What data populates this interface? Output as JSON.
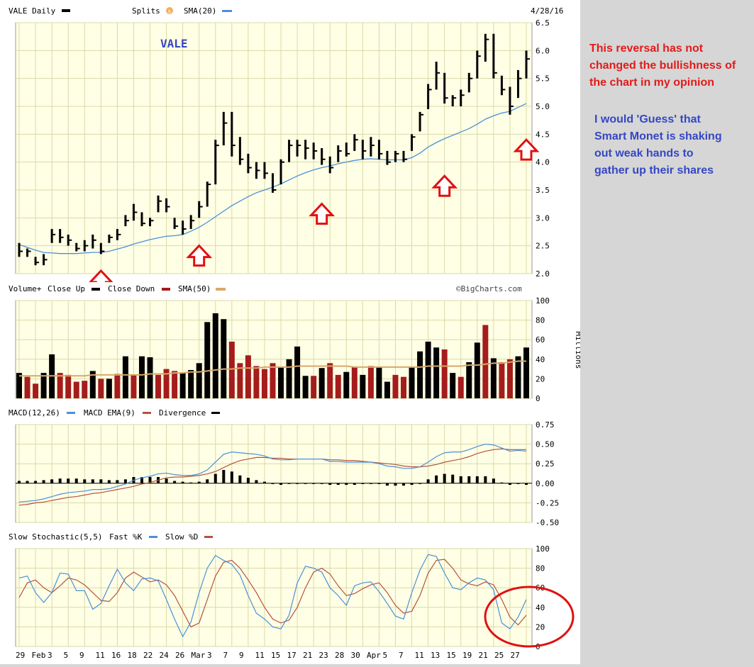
{
  "header": {
    "ticker_label": "VALE Daily",
    "splits_label": "Splits",
    "splits_icon": "s-circle-icon",
    "sma_label": "SMA(20)",
    "date": "4/28/16"
  },
  "price_panel": {
    "watermark": "VALE",
    "y_ticks": [
      "6.5",
      "6.0",
      "5.5",
      "5.0",
      "4.5",
      "4.0",
      "3.5",
      "3.0",
      "2.5",
      "2.0"
    ]
  },
  "volume_panel": {
    "legend_volume": "Volume+",
    "legend_close_up": "Close Up",
    "legend_close_down": "Close Down",
    "legend_sma": "SMA(50)",
    "source": "©BigCharts.com",
    "y_ticks": [
      "100",
      "80",
      "60",
      "40",
      "20",
      "0"
    ],
    "unit_label": "Millions"
  },
  "macd_panel": {
    "legend_macd": "MACD(12,26)",
    "legend_ema": "MACD EMA(9)",
    "legend_div": "Divergence",
    "y_ticks": [
      "0.75",
      "0.50",
      "0.25",
      "0.00",
      "-0.25",
      "-0.50"
    ]
  },
  "stoch_panel": {
    "legend_stoch": "Slow Stochastic(5,5)",
    "legend_fast": "Fast %K",
    "legend_slow": "Slow %D",
    "y_ticks": [
      "100",
      "80",
      "60",
      "40",
      "20",
      "0"
    ]
  },
  "x_labels": [
    "29",
    "Feb",
    "3",
    "5",
    "9",
    "11",
    "16",
    "18",
    "22",
    "24",
    "26",
    "Mar",
    "3",
    "7",
    "9",
    "11",
    "15",
    "17",
    "21",
    "23",
    "28",
    "30",
    "Apr",
    "5",
    "7",
    "11",
    "13",
    "15",
    "19",
    "21",
    "25",
    "27"
  ],
  "annotations": {
    "red": "This reversal has not\nchanged the bullishness of\nthe chart in my opinion",
    "blue": "I would 'Guess' that\nSmart Monet is shaking\nout weak hands to\ngather up their shares"
  },
  "colors": {
    "up": "#000000",
    "down": "#a51c1c",
    "sma_line": "#4a90d9",
    "vol_sma": "#d9a86c",
    "macd": "#4a90d9",
    "macd_ema": "#b5533c",
    "annot_red": "#e21b1b",
    "annot_blue": "#3547c4",
    "arrow": "#e01010",
    "panel_bg": "#ffffe6",
    "grid": "#d9d9a6"
  },
  "chart_data": [
    {
      "type": "candlestick",
      "title": "VALE Daily",
      "x": [
        "2016-01-29",
        "2016-02-01",
        "2016-02-02",
        "2016-02-03",
        "2016-02-04",
        "2016-02-05",
        "2016-02-08",
        "2016-02-09",
        "2016-02-10",
        "2016-02-11",
        "2016-02-12",
        "2016-02-16",
        "2016-02-17",
        "2016-02-18",
        "2016-02-19",
        "2016-02-22",
        "2016-02-23",
        "2016-02-24",
        "2016-02-25",
        "2016-02-26",
        "2016-02-29",
        "2016-03-01",
        "2016-03-02",
        "2016-03-03",
        "2016-03-04",
        "2016-03-07",
        "2016-03-08",
        "2016-03-09",
        "2016-03-10",
        "2016-03-11",
        "2016-03-14",
        "2016-03-15",
        "2016-03-16",
        "2016-03-17",
        "2016-03-18",
        "2016-03-21",
        "2016-03-22",
        "2016-03-23",
        "2016-03-24",
        "2016-03-28",
        "2016-03-29",
        "2016-03-30",
        "2016-03-31",
        "2016-04-01",
        "2016-04-04",
        "2016-04-05",
        "2016-04-06",
        "2016-04-07",
        "2016-04-08",
        "2016-04-11",
        "2016-04-12",
        "2016-04-13",
        "2016-04-14",
        "2016-04-15",
        "2016-04-18",
        "2016-04-19",
        "2016-04-20",
        "2016-04-21",
        "2016-04-22",
        "2016-04-25",
        "2016-04-26",
        "2016-04-27",
        "2016-04-28"
      ],
      "high": [
        2.55,
        2.45,
        2.3,
        2.35,
        2.8,
        2.8,
        2.7,
        2.55,
        2.6,
        2.7,
        2.55,
        2.7,
        2.8,
        3.05,
        3.25,
        3.1,
        3.0,
        3.4,
        3.35,
        3.0,
        2.95,
        3.05,
        3.3,
        3.65,
        4.4,
        4.9,
        4.9,
        4.45,
        4.15,
        4.0,
        4.0,
        3.8,
        4.05,
        4.4,
        4.4,
        4.4,
        4.35,
        4.25,
        4.1,
        4.3,
        4.35,
        4.5,
        4.4,
        4.45,
        4.4,
        4.2,
        4.2,
        4.2,
        4.5,
        4.9,
        5.4,
        5.8,
        5.6,
        5.2,
        5.3,
        5.6,
        6.0,
        6.3,
        6.3,
        5.55,
        5.35,
        5.65,
        6.0
      ],
      "low": [
        2.3,
        2.3,
        2.15,
        2.15,
        2.55,
        2.55,
        2.5,
        2.4,
        2.4,
        2.45,
        2.35,
        2.55,
        2.6,
        2.85,
        2.95,
        2.85,
        2.85,
        3.1,
        3.1,
        2.8,
        2.7,
        2.8,
        3.0,
        3.2,
        3.6,
        4.3,
        4.1,
        3.95,
        3.8,
        3.7,
        3.7,
        3.45,
        3.6,
        4.0,
        4.1,
        4.05,
        4.05,
        3.95,
        3.8,
        4.0,
        4.1,
        4.2,
        4.05,
        4.1,
        4.05,
        3.95,
        4.0,
        4.0,
        4.2,
        4.55,
        4.95,
        5.3,
        5.05,
        5.0,
        5.0,
        5.25,
        5.5,
        5.8,
        5.5,
        5.2,
        4.85,
        5.15,
        5.5
      ],
      "close": [
        2.4,
        2.4,
        2.2,
        2.25,
        2.7,
        2.65,
        2.6,
        2.45,
        2.5,
        2.6,
        2.4,
        2.65,
        2.7,
        2.95,
        3.1,
        2.9,
        2.95,
        3.3,
        3.2,
        2.85,
        2.8,
        2.95,
        3.2,
        3.6,
        4.3,
        4.7,
        4.3,
        4.05,
        3.9,
        3.85,
        3.8,
        3.5,
        4.0,
        4.3,
        4.3,
        4.25,
        4.2,
        4.05,
        3.9,
        4.2,
        4.15,
        4.4,
        4.2,
        4.3,
        4.15,
        4.0,
        4.15,
        4.05,
        4.45,
        4.85,
        5.3,
        5.6,
        5.15,
        5.15,
        5.2,
        5.5,
        5.9,
        6.2,
        5.6,
        5.3,
        5.0,
        5.5,
        5.85
      ],
      "sma20": [
        2.52,
        2.47,
        2.42,
        2.38,
        2.37,
        2.36,
        2.36,
        2.36,
        2.37,
        2.38,
        2.38,
        2.4,
        2.44,
        2.48,
        2.53,
        2.57,
        2.61,
        2.64,
        2.67,
        2.68,
        2.7,
        2.76,
        2.83,
        2.92,
        3.02,
        3.12,
        3.22,
        3.3,
        3.38,
        3.45,
        3.5,
        3.55,
        3.61,
        3.68,
        3.75,
        3.81,
        3.86,
        3.9,
        3.93,
        3.97,
        4.0,
        4.03,
        4.05,
        4.06,
        4.05,
        4.04,
        4.04,
        4.04,
        4.08,
        4.16,
        4.27,
        4.35,
        4.42,
        4.48,
        4.54,
        4.6,
        4.68,
        4.77,
        4.83,
        4.88,
        4.91,
        4.98,
        5.05
      ],
      "ylim": [
        2.0,
        6.5
      ]
    },
    {
      "type": "bar",
      "title": "Volume+",
      "values": [
        26,
        22,
        15,
        26,
        45,
        26,
        24,
        17,
        18,
        28,
        20,
        20,
        25,
        43,
        24,
        43,
        42,
        24,
        30,
        28,
        26,
        29,
        36,
        78,
        87,
        81,
        58,
        36,
        44,
        33,
        30,
        36,
        32,
        40,
        53,
        23,
        23,
        31,
        36,
        24,
        27,
        32,
        24,
        33,
        32,
        17,
        24,
        22,
        32,
        48,
        58,
        52,
        50,
        26,
        22,
        37,
        57,
        75,
        41,
        37,
        40,
        43,
        52
      ],
      "direction": [
        "up",
        "down",
        "down",
        "up",
        "up",
        "down",
        "down",
        "down",
        "down",
        "up",
        "down",
        "up",
        "down",
        "up",
        "down",
        "up",
        "up",
        "down",
        "down",
        "down",
        "up",
        "up",
        "up",
        "up",
        "up",
        "up",
        "down",
        "down",
        "down",
        "down",
        "down",
        "down",
        "up",
        "up",
        "up",
        "up",
        "down",
        "up",
        "down",
        "down",
        "up",
        "down",
        "up",
        "down",
        "up",
        "up",
        "down",
        "down",
        "up",
        "up",
        "up",
        "up",
        "down",
        "up",
        "down",
        "up",
        "up",
        "down",
        "up",
        "down",
        "down",
        "up",
        "up"
      ],
      "sma50": [
        23,
        23,
        23,
        23,
        23,
        23,
        23,
        23,
        23,
        24,
        24,
        24,
        24,
        24,
        24,
        24,
        25,
        25,
        25,
        26,
        26,
        27,
        27,
        28,
        29,
        30,
        30,
        31,
        31,
        31,
        32,
        32,
        32,
        32,
        33,
        33,
        33,
        33,
        33,
        33,
        33,
        32,
        32,
        32,
        32,
        32,
        32,
        32,
        32,
        32,
        33,
        33,
        33,
        33,
        33,
        34,
        34,
        35,
        36,
        36,
        37,
        38,
        38
      ],
      "ylim": [
        0,
        100
      ],
      "unit": "Millions"
    },
    {
      "type": "line",
      "title": "MACD(12,26)",
      "macd": [
        -0.24,
        -0.23,
        -0.22,
        -0.2,
        -0.17,
        -0.14,
        -0.12,
        -0.11,
        -0.1,
        -0.08,
        -0.08,
        -0.07,
        -0.04,
        -0.01,
        0.04,
        0.07,
        0.09,
        0.12,
        0.13,
        0.11,
        0.1,
        0.1,
        0.12,
        0.17,
        0.27,
        0.37,
        0.4,
        0.39,
        0.38,
        0.37,
        0.35,
        0.31,
        0.3,
        0.3,
        0.31,
        0.31,
        0.31,
        0.31,
        0.28,
        0.28,
        0.27,
        0.27,
        0.27,
        0.27,
        0.25,
        0.22,
        0.21,
        0.19,
        0.19,
        0.21,
        0.27,
        0.34,
        0.39,
        0.4,
        0.4,
        0.43,
        0.47,
        0.5,
        0.49,
        0.45,
        0.41,
        0.42,
        0.41
      ],
      "ema": [
        -0.28,
        -0.27,
        -0.25,
        -0.24,
        -0.22,
        -0.2,
        -0.18,
        -0.17,
        -0.15,
        -0.13,
        -0.12,
        -0.1,
        -0.08,
        -0.06,
        -0.04,
        -0.01,
        0.01,
        0.04,
        0.07,
        0.08,
        0.08,
        0.09,
        0.1,
        0.12,
        0.15,
        0.2,
        0.25,
        0.29,
        0.31,
        0.33,
        0.33,
        0.32,
        0.32,
        0.31,
        0.31,
        0.31,
        0.31,
        0.31,
        0.3,
        0.3,
        0.29,
        0.29,
        0.28,
        0.27,
        0.26,
        0.25,
        0.24,
        0.22,
        0.21,
        0.21,
        0.22,
        0.24,
        0.27,
        0.29,
        0.31,
        0.34,
        0.38,
        0.41,
        0.43,
        0.44,
        0.43,
        0.43,
        0.43
      ],
      "divergence": [
        0.03,
        0.03,
        0.03,
        0.04,
        0.05,
        0.06,
        0.06,
        0.06,
        0.05,
        0.05,
        0.05,
        0.04,
        0.04,
        0.05,
        0.08,
        0.08,
        0.08,
        0.08,
        0.06,
        0.03,
        0.02,
        0.01,
        0.02,
        0.05,
        0.12,
        0.17,
        0.15,
        0.1,
        0.07,
        0.04,
        0.02,
        -0.01,
        -0.02,
        0.0,
        0.0,
        0.0,
        0.0,
        0.0,
        -0.02,
        -0.02,
        -0.02,
        -0.02,
        -0.01,
        0.0,
        -0.01,
        -0.03,
        -0.03,
        -0.03,
        -0.02,
        0.0,
        0.05,
        0.1,
        0.12,
        0.11,
        0.09,
        0.09,
        0.09,
        0.09,
        0.06,
        0.01,
        -0.02,
        -0.01,
        -0.02
      ],
      "ylim": [
        -0.5,
        0.75
      ]
    },
    {
      "type": "line",
      "title": "Slow Stochastic(5,5)",
      "fast_k": [
        70,
        72,
        55,
        45,
        55,
        75,
        74,
        57,
        57,
        38,
        44,
        62,
        79,
        65,
        57,
        69,
        70,
        67,
        48,
        28,
        10,
        25,
        55,
        80,
        93,
        88,
        84,
        73,
        52,
        34,
        28,
        20,
        18,
        32,
        65,
        82,
        80,
        76,
        60,
        52,
        42,
        62,
        65,
        66,
        56,
        44,
        31,
        28,
        55,
        78,
        94,
        92,
        75,
        60,
        58,
        65,
        70,
        68,
        58,
        24,
        18,
        30,
        48
      ],
      "slow_d": [
        50,
        65,
        68,
        60,
        55,
        62,
        70,
        68,
        63,
        55,
        47,
        46,
        55,
        70,
        76,
        71,
        66,
        68,
        63,
        52,
        36,
        20,
        24,
        48,
        72,
        86,
        88,
        80,
        68,
        55,
        40,
        28,
        24,
        27,
        40,
        60,
        76,
        80,
        74,
        62,
        52,
        54,
        59,
        63,
        65,
        55,
        42,
        34,
        36,
        52,
        75,
        88,
        89,
        80,
        68,
        64,
        62,
        66,
        63,
        48,
        30,
        22,
        32
      ],
      "ylim": [
        0,
        100
      ]
    }
  ]
}
